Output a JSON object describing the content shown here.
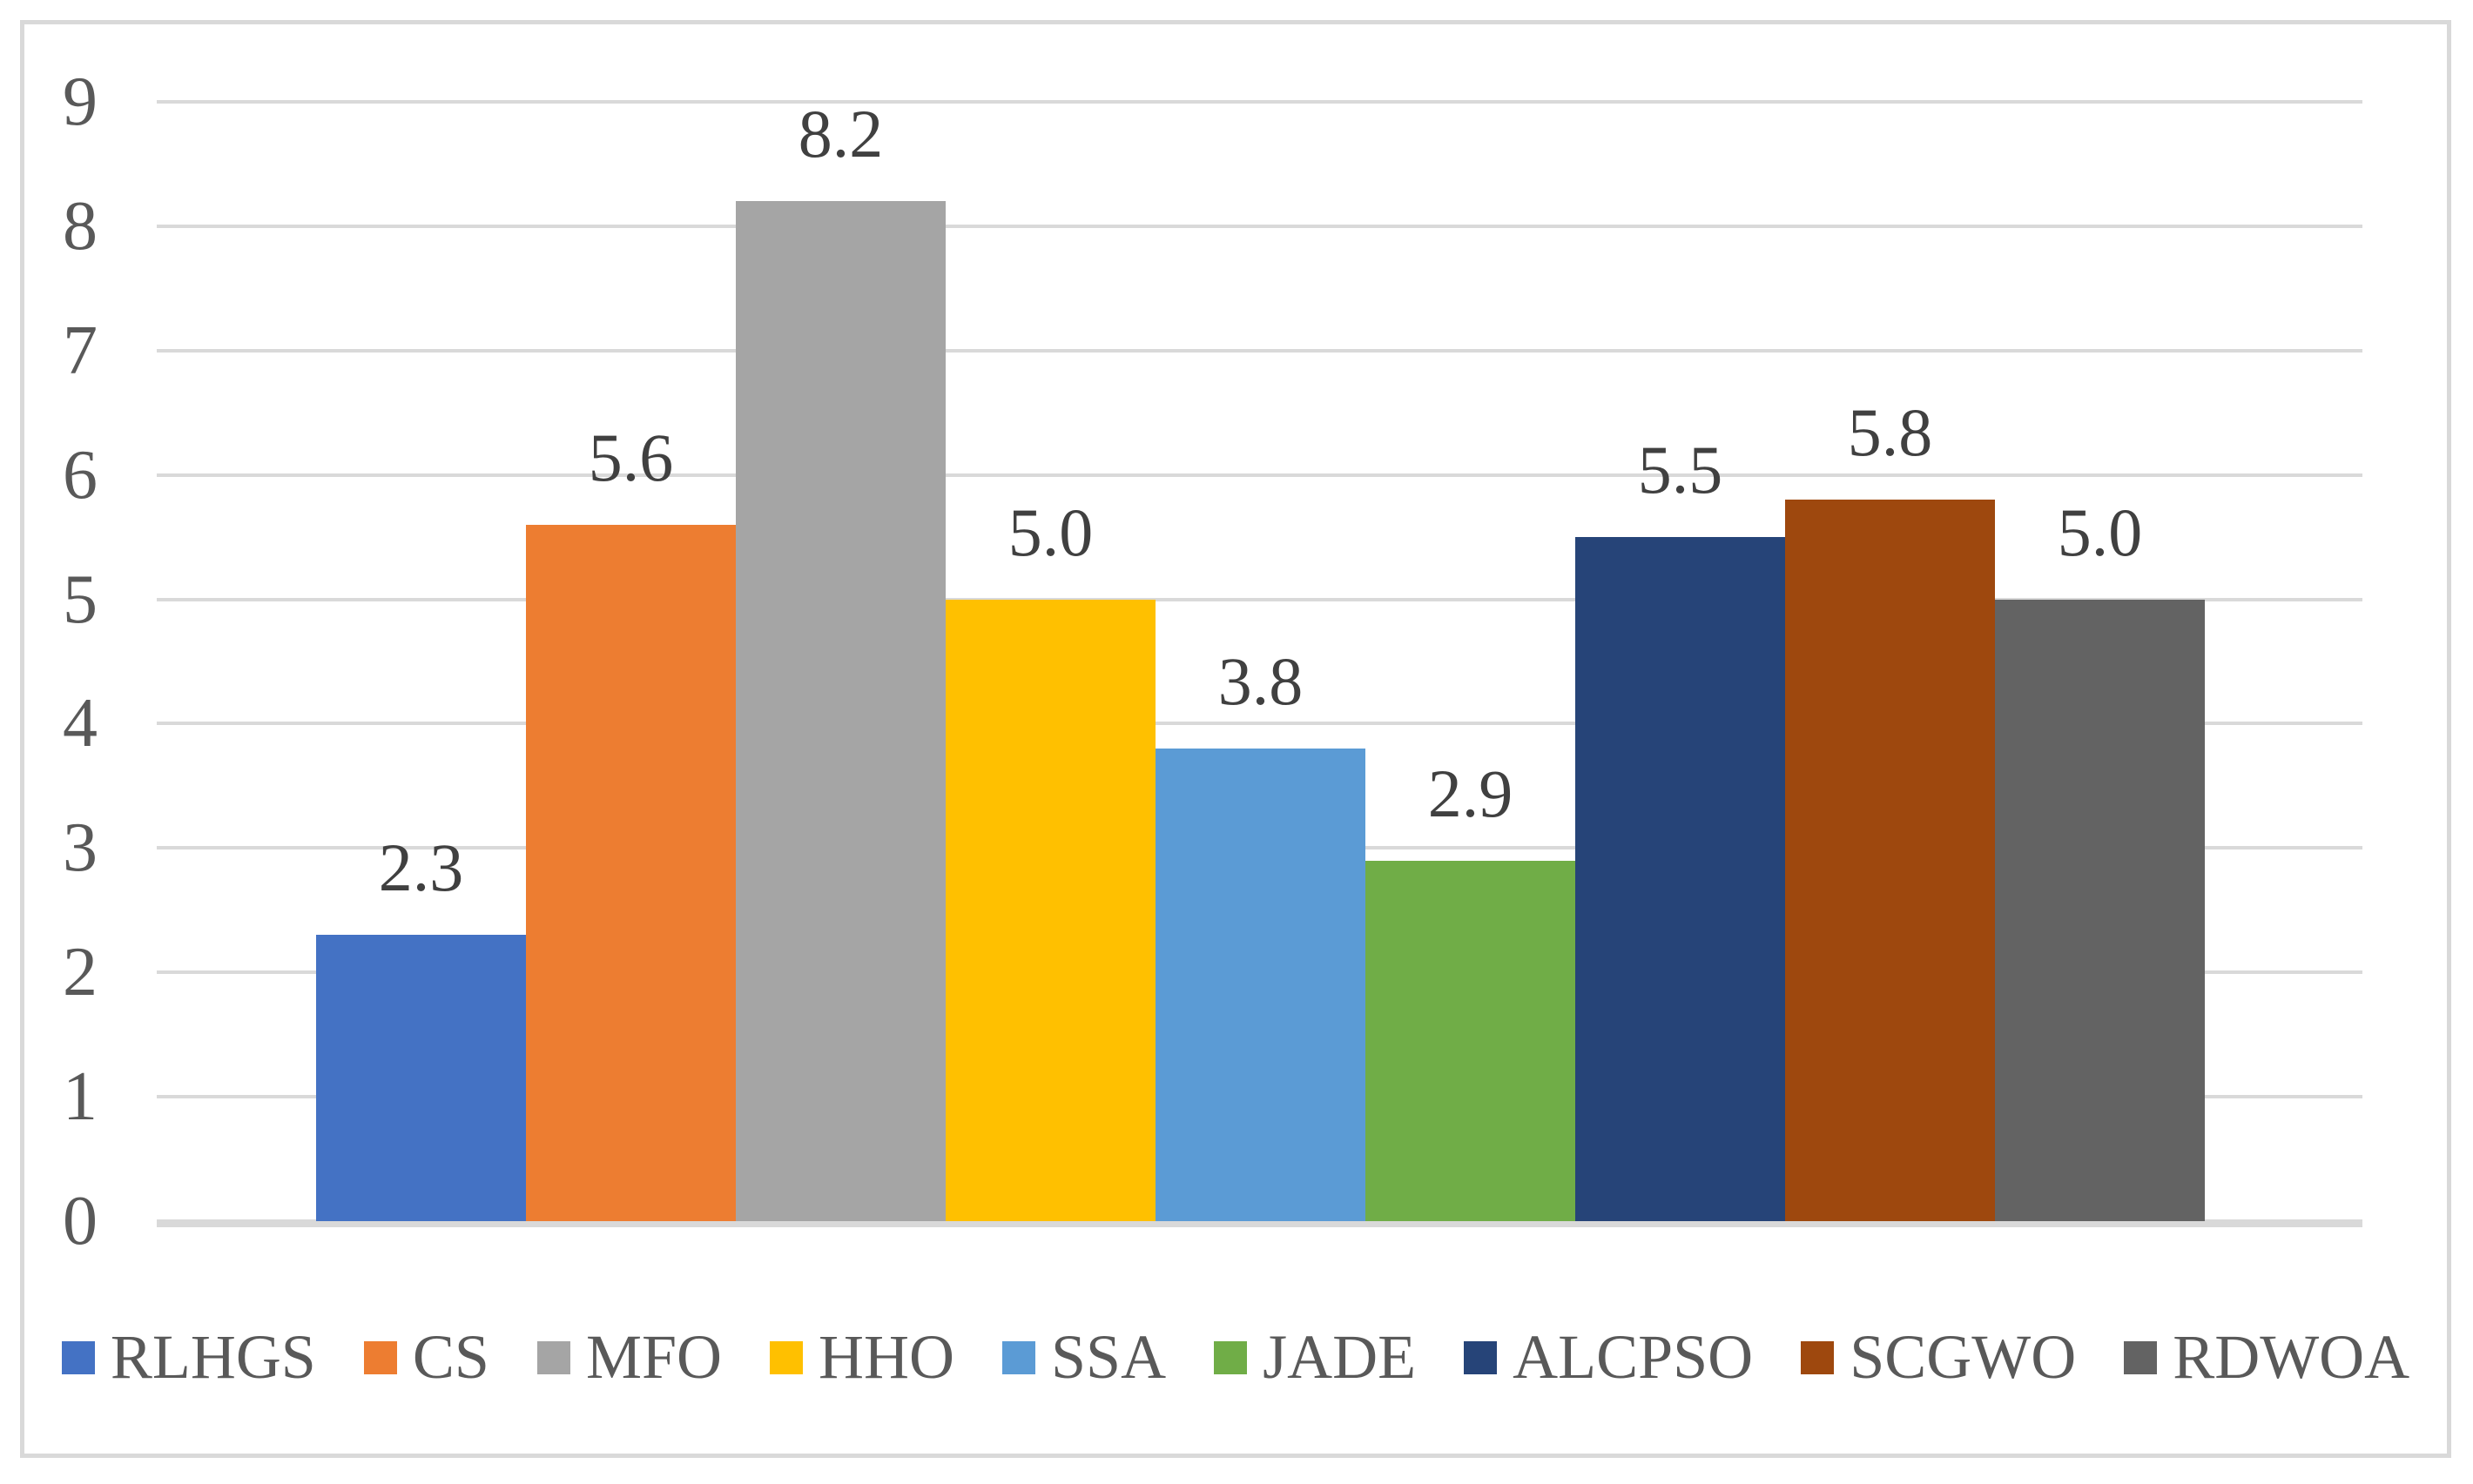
{
  "chart_data": {
    "type": "bar",
    "title": "",
    "xlabel": "",
    "ylabel": "",
    "categories": [
      "RLHGS",
      "CS",
      "MFO",
      "HHO",
      "SSA",
      "JADE",
      "ALCPSO",
      "SCGWO",
      "RDWOA"
    ],
    "values": [
      2.3,
      5.6,
      8.2,
      5.0,
      3.8,
      2.9,
      5.5,
      5.8,
      5.0
    ],
    "data_labels": [
      "2.3",
      "5.6",
      "8.2",
      "5.0",
      "3.8",
      "2.9",
      "5.5",
      "5.8",
      "5.0"
    ],
    "bar_colors": [
      "#4472C4",
      "#ED7D31",
      "#A5A5A5",
      "#FFC000",
      "#5B9BD5",
      "#70AD47",
      "#264478",
      "#9E480E",
      "#636363"
    ],
    "ylim": [
      0,
      9
    ],
    "ytick_labels": [
      "0",
      "1",
      "2",
      "3",
      "4",
      "5",
      "6",
      "7",
      "8",
      "9"
    ],
    "grid": true,
    "legend_position": "bottom",
    "legend": [
      {
        "label": "RLHGS",
        "color": "#4472C4"
      },
      {
        "label": "CS",
        "color": "#ED7D31"
      },
      {
        "label": "MFO",
        "color": "#A5A5A5"
      },
      {
        "label": "HHO",
        "color": "#FFC000"
      },
      {
        "label": "SSA",
        "color": "#5B9BD5"
      },
      {
        "label": "JADE",
        "color": "#70AD47"
      },
      {
        "label": "ALCPSO",
        "color": "#264478"
      },
      {
        "label": "SCGWO",
        "color": "#9E480E"
      },
      {
        "label": "RDWOA",
        "color": "#636363"
      }
    ]
  },
  "style": {
    "background": "#FFFFFF",
    "frame_border_color": "#D9D9D9",
    "gridline_color": "#D9D9D9",
    "axis_line_color": "#D9D9D9",
    "tick_label_color": "#595959",
    "data_label_color": "#404040",
    "legend_text_color": "#595959"
  }
}
